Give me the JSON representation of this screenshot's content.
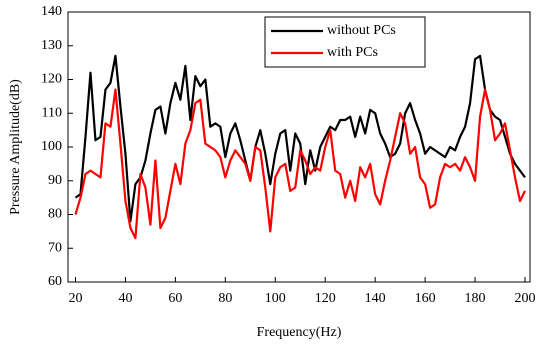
{
  "chart_data": {
    "type": "line",
    "xlabel": "Frequency(Hz)",
    "ylabel": "Pressure Amplitude(dB)",
    "x": [
      20,
      22,
      24,
      26,
      28,
      30,
      32,
      34,
      36,
      38,
      40,
      42,
      44,
      46,
      48,
      50,
      52,
      54,
      56,
      58,
      60,
      62,
      64,
      66,
      68,
      70,
      72,
      74,
      76,
      78,
      80,
      82,
      84,
      86,
      88,
      90,
      92,
      94,
      96,
      98,
      100,
      102,
      104,
      106,
      108,
      110,
      112,
      114,
      116,
      118,
      120,
      122,
      124,
      126,
      128,
      130,
      132,
      134,
      136,
      138,
      140,
      142,
      144,
      146,
      148,
      150,
      152,
      154,
      156,
      158,
      160,
      162,
      164,
      166,
      168,
      170,
      172,
      174,
      176,
      178,
      180,
      182,
      184,
      186,
      188,
      190,
      192,
      194,
      196,
      198,
      200
    ],
    "series": [
      {
        "name": "without PCs",
        "color": "#000000",
        "values": [
          85,
          86,
          103,
          122,
          102,
          103,
          117,
          119,
          127,
          112,
          98,
          78,
          89,
          91,
          96,
          104,
          111,
          112,
          104,
          113,
          119,
          114,
          124,
          108,
          121,
          118,
          120,
          106,
          107,
          106,
          97,
          104,
          107,
          102,
          96,
          90,
          100,
          105,
          98,
          89,
          98,
          104,
          105,
          93,
          104,
          101,
          89,
          99,
          93,
          100,
          103,
          106,
          105,
          108,
          108,
          109,
          103,
          109,
          104,
          111,
          110,
          104,
          101,
          97,
          98,
          101,
          110,
          113,
          108,
          104,
          98,
          100,
          99,
          98,
          97,
          100,
          99,
          103,
          106,
          113,
          126,
          127,
          117,
          111,
          109,
          108,
          103,
          98,
          95,
          93,
          91
        ]
      },
      {
        "name": "with PCs",
        "color": "#ff0000",
        "values": [
          80,
          85,
          92,
          93,
          92,
          91,
          107,
          106,
          117,
          101,
          84,
          76,
          73,
          92,
          88,
          77,
          96,
          76,
          79,
          87,
          95,
          89,
          101,
          105,
          113,
          114,
          101,
          100,
          99,
          97,
          91,
          96,
          99,
          97,
          95,
          90,
          100,
          99,
          88,
          75,
          91,
          94,
          95,
          87,
          88,
          99,
          96,
          92,
          94,
          93,
          100,
          105,
          93,
          92,
          85,
          90,
          84,
          94,
          91,
          95,
          86,
          83,
          90,
          96,
          103,
          110,
          107,
          98,
          100,
          91,
          89,
          82,
          83,
          91,
          95,
          94,
          95,
          93,
          97,
          94,
          90,
          109,
          117,
          111,
          102,
          104,
          107,
          99,
          91,
          84,
          87
        ]
      }
    ],
    "xlim": [
      17,
      202
    ],
    "xticks": [
      20,
      40,
      60,
      80,
      100,
      120,
      140,
      160,
      180,
      200
    ],
    "ylim": [
      60,
      140
    ],
    "yticks": [
      60,
      70,
      80,
      90,
      100,
      110,
      120,
      130,
      140
    ],
    "grid": false,
    "legend": "upper right"
  }
}
